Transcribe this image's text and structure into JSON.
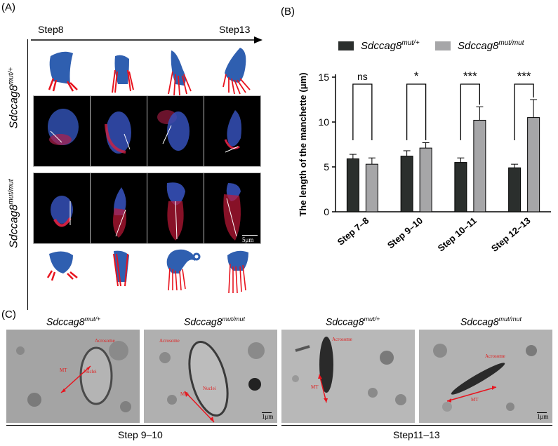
{
  "panels": {
    "A": {
      "label": "(A)",
      "step_start": "Step8",
      "step_end": "Step13",
      "row_label_het_base": "Sdccag8",
      "row_label_het_sup": "mut/+",
      "row_label_mut_base": "Sdccag8",
      "row_label_mut_sup": "mut/mut",
      "scale_bar": "5μm"
    },
    "B": {
      "label": "(B)"
    },
    "C": {
      "label": "(C)",
      "images": [
        {
          "title_base": "Sdccag8",
          "title_sup": "mut/+",
          "labels": [
            "Acrosome",
            "MT",
            "Nuclei"
          ],
          "scale": ""
        },
        {
          "title_base": "Sdccag8",
          "title_sup": "mut/mut",
          "labels": [
            "Acrosome",
            "MT",
            "Nuclei"
          ],
          "scale": "1μm"
        },
        {
          "title_base": "Sdccag8",
          "title_sup": "mut/+",
          "labels": [
            "Acrosome",
            "MT"
          ],
          "scale": ""
        },
        {
          "title_base": "Sdccag8",
          "title_sup": "mut/mut",
          "labels": [
            "Acrosome",
            "MT"
          ],
          "scale": "1μm"
        }
      ],
      "group_left": "Step 9–10",
      "group_right": "Step11–13"
    }
  },
  "chart_data": {
    "type": "bar",
    "ylabel": "The length of the manchette (μm)",
    "xlabel": "",
    "ylim": [
      0,
      15
    ],
    "yticks": [
      0,
      5,
      10,
      15
    ],
    "categories": [
      "Step 7–8",
      "Step 9–10",
      "Step 10–11",
      "Step 12–13"
    ],
    "series": [
      {
        "name_base": "Sdccag8",
        "name_sup": "mut/+",
        "color": "#2b2f2d",
        "values": [
          5.9,
          6.2,
          5.5,
          4.9
        ],
        "errors": [
          0.5,
          0.6,
          0.5,
          0.4
        ]
      },
      {
        "name_base": "Sdccag8",
        "name_sup": "mut/mut",
        "color": "#a6a6a8",
        "values": [
          5.3,
          7.1,
          10.2,
          10.5
        ],
        "errors": [
          0.7,
          0.6,
          1.5,
          2.0
        ]
      }
    ],
    "significance": [
      "ns",
      "*",
      "***",
      "***"
    ],
    "legend_position": "top"
  },
  "colors": {
    "nucleus": "#2f5fb0",
    "manchette": "#e8141e"
  }
}
